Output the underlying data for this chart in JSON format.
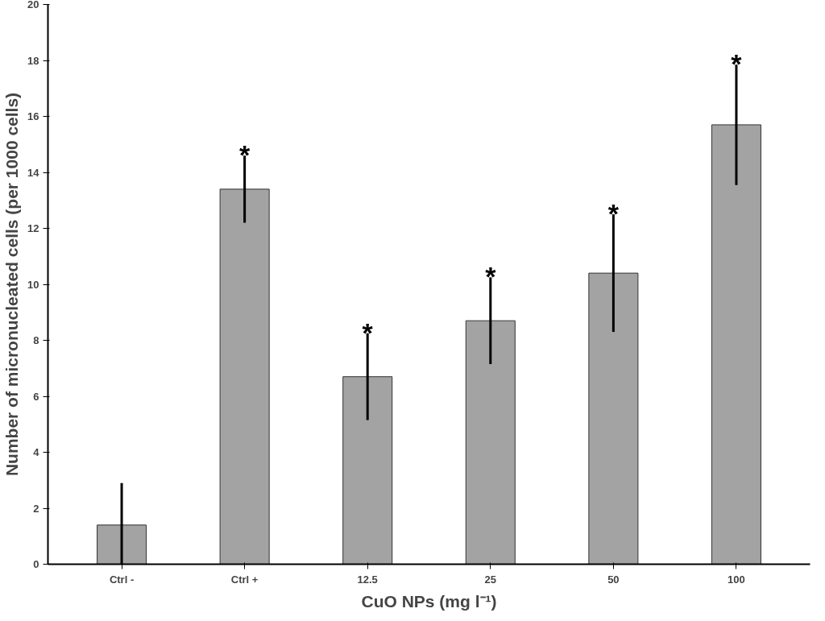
{
  "chart_data": {
    "type": "bar",
    "xlabel": "CuO NPs (mg l⁻¹)",
    "ylabel": "Number of micronucleated cells (per 1000 cells)",
    "categories": [
      "Ctrl -",
      "Ctrl +",
      "12.5",
      "25",
      "50",
      "100"
    ],
    "values": [
      1.4,
      13.4,
      6.7,
      8.7,
      10.4,
      15.7
    ],
    "errors": [
      [
        0,
        2.9
      ],
      1.2,
      1.55,
      1.55,
      2.1,
      2.15
    ],
    "color": "#a3a3a3",
    "ylim": [
      0,
      20
    ],
    "yticks": [
      0,
      2,
      4,
      6,
      8,
      10,
      12,
      14,
      16,
      18,
      20
    ],
    "grid": false,
    "annotations": [
      {
        "text": "*",
        "x": "Ctrl +",
        "y": 14.6
      },
      {
        "text": "*",
        "x": "12.5",
        "y": 8.25
      },
      {
        "text": "*",
        "x": "25",
        "y": 10.25
      },
      {
        "text": "*",
        "x": "50",
        "y": 12.5
      },
      {
        "text": "*",
        "x": "100",
        "y": 17.85
      }
    ]
  }
}
